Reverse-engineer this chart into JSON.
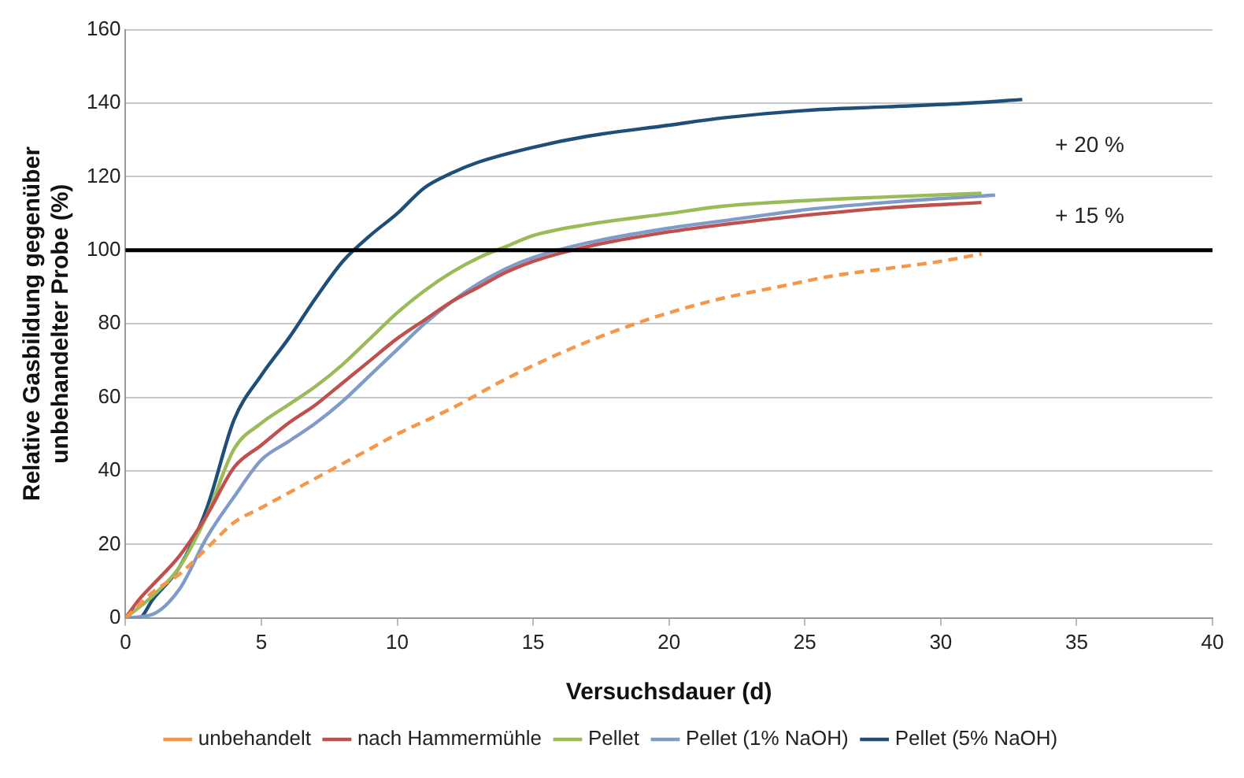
{
  "chart_data": {
    "type": "line",
    "xlabel": "Versuchsdauer (d)",
    "ylabel": "Relative Gasbildung gegenüber unbehandelter Probe (%)",
    "xlim": [
      0,
      40
    ],
    "xticks": [
      0,
      5,
      10,
      15,
      20,
      25,
      30,
      35,
      40
    ],
    "ylim": [
      0,
      160
    ],
    "yticks": [
      0,
      20,
      40,
      60,
      80,
      100,
      120,
      140,
      160
    ],
    "grid": "y",
    "legend": "bottom",
    "marker": "none",
    "series": [
      {
        "name": "unbehandelt",
        "color": "#f79646",
        "line_style": "dashed",
        "x": [
          0,
          1,
          2,
          3,
          4,
          5,
          6,
          7,
          8,
          9,
          10,
          12,
          14,
          16,
          18,
          20,
          22,
          24,
          26,
          28,
          30,
          31.5
        ],
        "values": [
          0,
          7,
          12,
          19,
          26,
          30,
          34,
          38,
          42,
          46,
          50,
          57,
          65,
          72,
          78,
          83,
          87,
          90,
          93,
          95,
          97,
          99
        ]
      },
      {
        "name": "nach Hammermühle",
        "color": "#c0504d",
        "line_style": "solid",
        "x": [
          0,
          0.5,
          1,
          2,
          3,
          4,
          5,
          6,
          7,
          8,
          9,
          10,
          11,
          12,
          13,
          14,
          15,
          17,
          20,
          22,
          25,
          28,
          31.5
        ],
        "values": [
          0,
          5,
          9,
          17,
          28,
          41,
          47,
          53,
          58,
          64,
          70,
          76,
          81,
          86,
          90,
          94,
          97,
          101,
          105,
          107,
          109.5,
          111.5,
          113
        ]
      },
      {
        "name": "Pellet",
        "color": "#9bbb59",
        "line_style": "solid",
        "x": [
          0,
          1,
          2,
          3,
          4,
          5,
          6,
          7,
          8,
          9,
          10,
          11,
          12,
          13,
          14,
          15,
          17,
          20,
          22,
          25,
          28,
          31.5
        ],
        "values": [
          0,
          6,
          14,
          28,
          46,
          53,
          58,
          63,
          69,
          76,
          83,
          89,
          94,
          98,
          101,
          104,
          107,
          110,
          112,
          113.5,
          114.5,
          115.5
        ]
      },
      {
        "name": "Pellet (1% NaOH)",
        "color": "#7f9cc8",
        "line_style": "solid",
        "x": [
          0,
          1,
          2,
          3,
          4,
          5,
          6,
          7,
          8,
          9,
          10,
          11,
          12,
          13,
          14,
          15,
          17,
          20,
          22,
          25,
          28,
          32
        ],
        "values": [
          0,
          1,
          8,
          22,
          33,
          43,
          48,
          53,
          59,
          66,
          73,
          80,
          86,
          91,
          95,
          98,
          102,
          106,
          108,
          111,
          113,
          115
        ]
      },
      {
        "name": "Pellet (5% NaOH)",
        "color": "#1f4e79",
        "line_style": "solid",
        "x": [
          0,
          0.5,
          1,
          2,
          3,
          4,
          5,
          6,
          7,
          8,
          9,
          10,
          11,
          12,
          13,
          15,
          17,
          20,
          22,
          25,
          28,
          31,
          33
        ],
        "values": [
          0,
          0,
          5,
          14,
          30,
          54,
          66,
          76,
          87,
          97,
          104,
          110,
          117,
          121,
          124,
          128,
          131,
          134,
          136,
          138,
          139,
          140,
          141
        ]
      }
    ],
    "ref_lines": [
      {
        "axis": "y",
        "value": 100,
        "color": "#000000"
      }
    ],
    "annotations": [
      "+ 20 %",
      "+ 15 %"
    ]
  }
}
